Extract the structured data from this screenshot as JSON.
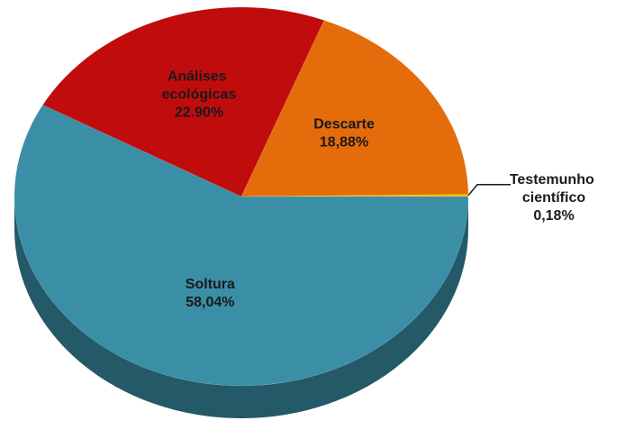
{
  "chart_data": {
    "type": "pie3d",
    "categories": [
      "Soltura",
      "Análises ecológicas",
      "Descarte",
      "Testemunho científico"
    ],
    "values": [
      58.04,
      22.9,
      18.88,
      0.18
    ],
    "value_labels": [
      "58,04%",
      "22.90%",
      "18,88%",
      "0,18%"
    ],
    "colors": [
      "#3a8fa6",
      "#c00c0c",
      "#e46c0a",
      "#f2c200"
    ]
  }
}
